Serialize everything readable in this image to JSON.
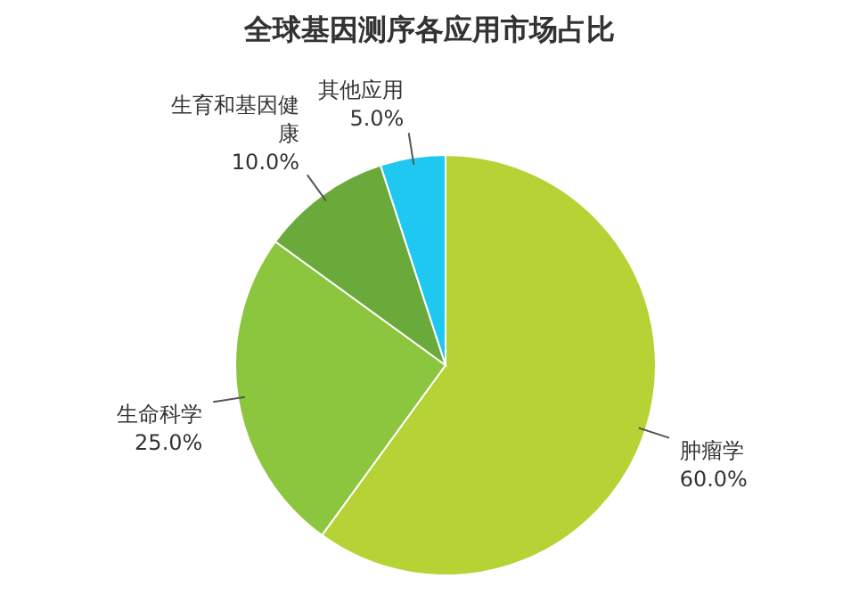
{
  "chart_data": {
    "type": "pie",
    "title": "全球基因测序各应用市场占比",
    "categories": [
      "肿瘤学",
      "生命科学",
      "生育和基因健康",
      "其他应用"
    ],
    "values": [
      60,
      25,
      10,
      5
    ],
    "value_labels": [
      "60.0%",
      "25.0%",
      "10.0%",
      "5.0%"
    ],
    "colors": [
      "#b5d334",
      "#8cc63f",
      "#6aaa3a",
      "#1ec8f0"
    ]
  }
}
